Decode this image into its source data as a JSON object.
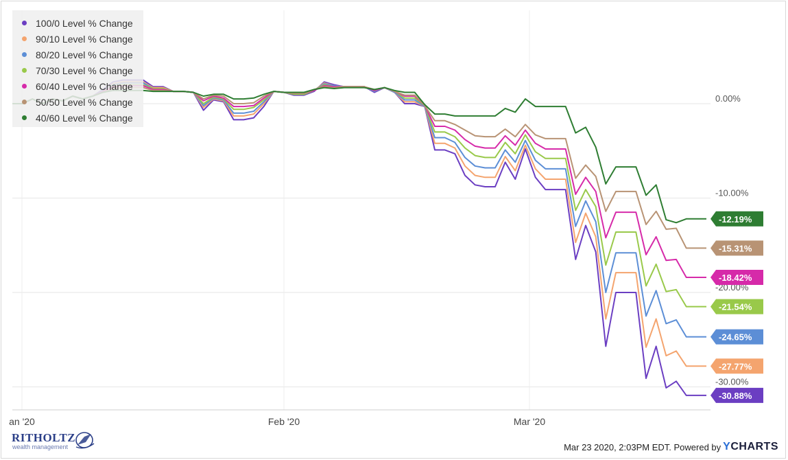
{
  "chart_data": {
    "type": "line",
    "x_ticks": [
      "an '20",
      "Feb '20",
      "Mar '20"
    ],
    "y_ticks": [
      "0.00%",
      "-10.00%",
      "-20.00%",
      "-30.00%"
    ],
    "ylim": [
      -33,
      9
    ],
    "grid": true,
    "legend_position": "top-left",
    "series": [
      {
        "name": "100/0 Level % Change",
        "color": "#6b3ec2",
        "end_label": "-30.88%",
        "values": [
          0,
          0,
          0.5,
          0,
          0.5,
          0.3,
          0.8,
          0.5,
          0.8,
          1.5,
          2.3,
          2.5,
          2.5,
          2.5,
          1.8,
          1.8,
          1.3,
          1.3,
          1.2,
          -0.7,
          0.4,
          0.2,
          -1.7,
          -1.7,
          -1.5,
          -0.3,
          1.3,
          1.2,
          0.9,
          0.9,
          1.3,
          2.3,
          2,
          1.8,
          1.8,
          1.8,
          1.2,
          1.7,
          1.2,
          0,
          0,
          -0.3,
          -4.9,
          -4.9,
          -5.3,
          -7.6,
          -8.6,
          -8.8,
          -8.8,
          -6.2,
          -8,
          -4.8,
          -7.8,
          -9.1,
          -9.1,
          -9.1,
          -16.5,
          -12.9,
          -15.7,
          -25.7,
          -20,
          -20,
          -20,
          -29.1,
          -25.7,
          -30.1,
          -29.4,
          -30.9,
          -30.9,
          -30.9
        ]
      },
      {
        "name": "90/10 Level % Change",
        "color": "#f4a46e",
        "end_label": "-27.77%",
        "values": [
          0,
          0,
          0.5,
          0,
          0.5,
          0.3,
          0.8,
          0.5,
          0.8,
          1.4,
          2.1,
          2.3,
          2.3,
          2.3,
          1.7,
          1.7,
          1.3,
          1.3,
          1.2,
          -0.4,
          0.5,
          0.3,
          -1.3,
          -1.3,
          -1.1,
          0,
          1.3,
          1.2,
          1,
          1,
          1.4,
          2.2,
          1.9,
          1.8,
          1.8,
          1.8,
          1.3,
          1.7,
          1.2,
          0.2,
          0.2,
          -0.3,
          -4.2,
          -4.2,
          -4.7,
          -6.6,
          -7.6,
          -7.8,
          -7.8,
          -5.6,
          -7.1,
          -4.4,
          -6.9,
          -8,
          -8,
          -8,
          -14.7,
          -11.6,
          -14.1,
          -22.8,
          -17.9,
          -17.9,
          -17.9,
          -25.8,
          -22.8,
          -26.7,
          -26.2,
          -27.8,
          -27.8,
          -27.8
        ]
      },
      {
        "name": "80/20 Level % Change",
        "color": "#5c8ed6",
        "end_label": "-24.65%",
        "values": [
          0,
          0,
          0.5,
          0,
          0.5,
          0.3,
          0.8,
          0.5,
          0.8,
          1.4,
          2,
          2.2,
          2.2,
          2.2,
          1.6,
          1.6,
          1.3,
          1.3,
          1.2,
          -0.2,
          0.6,
          0.4,
          -1,
          -1,
          -0.8,
          0.2,
          1.3,
          1.2,
          1,
          1,
          1.4,
          2.1,
          1.9,
          1.8,
          1.8,
          1.8,
          1.3,
          1.7,
          1.2,
          0.4,
          0.4,
          -0.3,
          -3.6,
          -3.6,
          -4.1,
          -5.7,
          -6.6,
          -6.8,
          -6.8,
          -4.9,
          -6.2,
          -3.9,
          -6,
          -6.9,
          -6.9,
          -6.9,
          -13,
          -10.3,
          -12.5,
          -20,
          -15.8,
          -15.8,
          -15.8,
          -22.5,
          -19.8,
          -23.3,
          -22.9,
          -24.7,
          -24.7,
          -24.7
        ]
      },
      {
        "name": "70/30 Level % Change",
        "color": "#99c94a",
        "end_label": "-21.54%",
        "values": [
          0,
          0,
          0.5,
          0,
          0.5,
          0.3,
          0.8,
          0.5,
          0.8,
          1.3,
          1.9,
          2,
          2,
          2,
          1.6,
          1.6,
          1.3,
          1.3,
          1.2,
          0,
          0.7,
          0.5,
          -0.6,
          -0.6,
          -0.4,
          0.4,
          1.3,
          1.2,
          1,
          1,
          1.4,
          2,
          1.8,
          1.8,
          1.8,
          1.8,
          1.4,
          1.7,
          1.3,
          0.6,
          0.6,
          -0.2,
          -3,
          -3,
          -3.5,
          -4.7,
          -5.5,
          -5.7,
          -5.7,
          -4.1,
          -5.3,
          -3.3,
          -5.1,
          -5.8,
          -5.8,
          -5.8,
          -11.3,
          -9.1,
          -10.9,
          -17.1,
          -13.6,
          -13.6,
          -13.6,
          -19.3,
          -17,
          -19.9,
          -19.7,
          -21.5,
          -21.5,
          -21.5
        ]
      },
      {
        "name": "60/40 Level % Change",
        "color": "#d62aa9",
        "end_label": "-18.42%",
        "values": [
          0,
          0,
          0.5,
          0,
          0.5,
          0.3,
          0.8,
          0.5,
          0.8,
          1.3,
          1.8,
          1.9,
          1.9,
          1.9,
          1.5,
          1.5,
          1.3,
          1.3,
          1.2,
          0.3,
          0.8,
          0.6,
          -0.3,
          -0.3,
          -0.2,
          0.6,
          1.3,
          1.2,
          1.1,
          1.1,
          1.4,
          1.9,
          1.8,
          1.8,
          1.8,
          1.8,
          1.4,
          1.7,
          1.3,
          0.8,
          0.8,
          -0.2,
          -2.4,
          -2.4,
          -2.8,
          -3.8,
          -4.5,
          -4.7,
          -4.7,
          -3.4,
          -4.4,
          -2.8,
          -4.2,
          -4.8,
          -4.8,
          -4.8,
          -9.6,
          -7.8,
          -9.3,
          -14.2,
          -11.5,
          -11.5,
          -11.5,
          -16,
          -14.1,
          -16.6,
          -16.5,
          -18.4,
          -18.4,
          -18.4
        ]
      },
      {
        "name": "50/50 Level % Change",
        "color": "#b89374",
        "end_label": "-15.31%",
        "values": [
          0,
          0,
          0.5,
          0,
          0.5,
          0.3,
          0.8,
          0.5,
          0.8,
          1.2,
          1.6,
          1.7,
          1.7,
          1.7,
          1.4,
          1.4,
          1.3,
          1.3,
          1.2,
          0.5,
          0.9,
          0.8,
          0,
          0,
          0.1,
          0.8,
          1.3,
          1.2,
          1.1,
          1.1,
          1.5,
          1.8,
          1.7,
          1.8,
          1.8,
          1.8,
          1.5,
          1.7,
          1.3,
          0.9,
          0.9,
          -0.2,
          -1.8,
          -1.8,
          -2.2,
          -2.8,
          -3.4,
          -3.5,
          -3.5,
          -2.7,
          -3.5,
          -2.2,
          -3.3,
          -3.7,
          -3.7,
          -3.7,
          -7.9,
          -6.5,
          -7.7,
          -11.4,
          -9.3,
          -9.3,
          -9.3,
          -12.8,
          -11.4,
          -13.3,
          -13.2,
          -15.3,
          -15.3,
          -15.3
        ]
      },
      {
        "name": "40/60 Level % Change",
        "color": "#2e7d32",
        "end_label": "-12.19%",
        "values": [
          0,
          0,
          0.5,
          0,
          0.5,
          0.3,
          0.8,
          0.5,
          0.8,
          1.2,
          1.4,
          1.4,
          1.4,
          1.4,
          1.3,
          1.3,
          1.3,
          1.3,
          1.2,
          0.8,
          1,
          1,
          0.5,
          0.5,
          0.6,
          1,
          1.3,
          1.2,
          1.2,
          1.2,
          1.5,
          1.7,
          1.6,
          1.7,
          1.7,
          1.7,
          1.5,
          1.7,
          1.4,
          1.2,
          1.2,
          -0.1,
          -1.1,
          -1.1,
          -1.3,
          -1.3,
          -1.3,
          -1.3,
          -1.3,
          -0.5,
          -0.9,
          0.5,
          -0.3,
          -0.3,
          -0.3,
          -0.3,
          -3.1,
          -2.5,
          -4.6,
          -8.5,
          -6.7,
          -6.7,
          -6.7,
          -9.7,
          -8.6,
          -12.3,
          -12.6,
          -12.2,
          -12.2,
          -12.2
        ]
      }
    ]
  },
  "branding": {
    "logo_name": "RITHOLTZ",
    "logo_sub": "wealth management",
    "footer_text": "Mar 23 2020, 2:03PM EDT. Powered by",
    "ycharts_y": "Y",
    "ycharts_rest": "CHARTS"
  }
}
